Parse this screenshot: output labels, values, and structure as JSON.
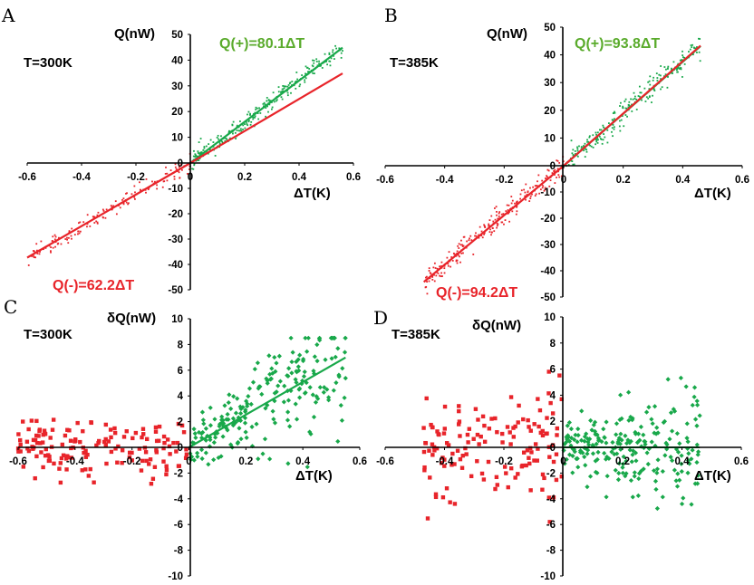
{
  "figure": {
    "panels": [
      "A",
      "B",
      "C",
      "D"
    ]
  },
  "colors": {
    "positive": "#18a84a",
    "negative": "#e8242a",
    "axis": "#000000",
    "label_green": "#5aab2c"
  },
  "chart_data": [
    {
      "panel": "A",
      "type": "scatter",
      "annotation": "T=300K",
      "ylabel": "Q(nW)",
      "xlabel": "ΔT(K)",
      "xlim": [
        -0.6,
        0.6
      ],
      "ylim": [
        -50,
        50
      ],
      "x_ticks": [
        "-0.6",
        "-0.4",
        "-0.2",
        "0",
        "0.2",
        "0.4",
        "0.6"
      ],
      "y_ticks": [
        "-50",
        "-40",
        "-30",
        "-20",
        "-10",
        "0",
        "10",
        "20",
        "30",
        "40",
        "50"
      ],
      "grid": false,
      "series": [
        {
          "name": "Q(+)=80.1ΔT",
          "color": "#18a84a",
          "kind": "points+fit",
          "slope": 80.1,
          "x_range": [
            0,
            0.56
          ],
          "noise": 1.8,
          "n": 260,
          "seed": 11
        },
        {
          "name": "Q(-)=62.2ΔT",
          "color": "#e8242a",
          "kind": "points+fit",
          "slope": 62.2,
          "x_range": [
            -0.6,
            0
          ],
          "noise": 1.6,
          "n": 150,
          "seed": 23
        },
        {
          "name": "",
          "color": "#e8242a",
          "kind": "line",
          "slope": 62.2,
          "x_range": [
            0,
            0.56
          ]
        }
      ]
    },
    {
      "panel": "B",
      "type": "scatter",
      "annotation": "T=385K",
      "ylabel": "Q(nW)",
      "xlabel": "ΔT(K)",
      "xlim": [
        -0.6,
        0.6
      ],
      "ylim": [
        -50,
        50
      ],
      "x_ticks": [
        "-0.6",
        "-0.4",
        "-0.2",
        "0",
        "0.2",
        "0.4",
        "0.6"
      ],
      "y_ticks": [
        "-50",
        "-40",
        "-30",
        "-20",
        "-10",
        "0",
        "10",
        "20",
        "30",
        "40",
        "50"
      ],
      "grid": false,
      "series": [
        {
          "name": "Q(+)=93.8ΔT",
          "color": "#18a84a",
          "kind": "points+fit",
          "slope": 93.8,
          "x_range": [
            0,
            0.46
          ],
          "noise": 2.2,
          "n": 230,
          "seed": 37
        },
        {
          "name": "Q(-)=94.2ΔT",
          "color": "#e8242a",
          "kind": "points+fit",
          "slope": 94.2,
          "x_range": [
            -0.47,
            0
          ],
          "noise": 2.2,
          "n": 230,
          "seed": 41
        },
        {
          "name": "",
          "color": "#e8242a",
          "kind": "line",
          "slope": 94.2,
          "x_range": [
            0,
            0.46
          ]
        }
      ]
    },
    {
      "panel": "C",
      "type": "scatter",
      "annotation": "T=300K",
      "ylabel": "δQ(nW)",
      "xlabel": "ΔT(K)",
      "xlim": [
        -0.6,
        0.6
      ],
      "ylim": [
        -10,
        10
      ],
      "x_ticks": [
        "-0.6",
        "-0.4",
        "-0.2",
        "0",
        "0.2",
        "0.4",
        "0.6"
      ],
      "y_ticks": [
        "-10",
        "-8",
        "-6",
        "-4",
        "-2",
        "0",
        "2",
        "4",
        "6",
        "8",
        "10"
      ],
      "grid": false,
      "series": [
        {
          "name": "",
          "color": "#18a84a",
          "kind": "residual-diamonds+fit",
          "slope": 12.7,
          "x_range": [
            0,
            0.55
          ],
          "noise": 1.6,
          "n": 220,
          "seed": 53
        },
        {
          "name": "",
          "color": "#e8242a",
          "kind": "residual-squares",
          "slope": 0,
          "x_range": [
            -0.6,
            0
          ],
          "noise": 1.1,
          "n": 150,
          "seed": 59
        }
      ]
    },
    {
      "panel": "D",
      "type": "scatter",
      "annotation": "T=385K",
      "ylabel": "δQ(nW)",
      "xlabel": "ΔT(K)",
      "xlim": [
        -0.6,
        0.6
      ],
      "ylim": [
        -10,
        10
      ],
      "x_ticks": [
        "-0.6",
        "-0.4",
        "-0.2",
        "0",
        "0.2",
        "0.4",
        "0.6"
      ],
      "y_ticks": [
        "-10",
        "-8",
        "-6",
        "-4",
        "-2",
        "0",
        "2",
        "4",
        "6",
        "8",
        "10"
      ],
      "grid": false,
      "series": [
        {
          "name": "",
          "color": "#18a84a",
          "kind": "residual-diamonds+zero",
          "slope": 0,
          "x_range": [
            0,
            0.46
          ],
          "noise": 1.9,
          "n": 230,
          "seed": 61
        },
        {
          "name": "",
          "color": "#e8242a",
          "kind": "residual-squares",
          "slope": 0,
          "x_range": [
            -0.47,
            0
          ],
          "noise": 1.9,
          "n": 140,
          "seed": 67
        }
      ]
    }
  ]
}
